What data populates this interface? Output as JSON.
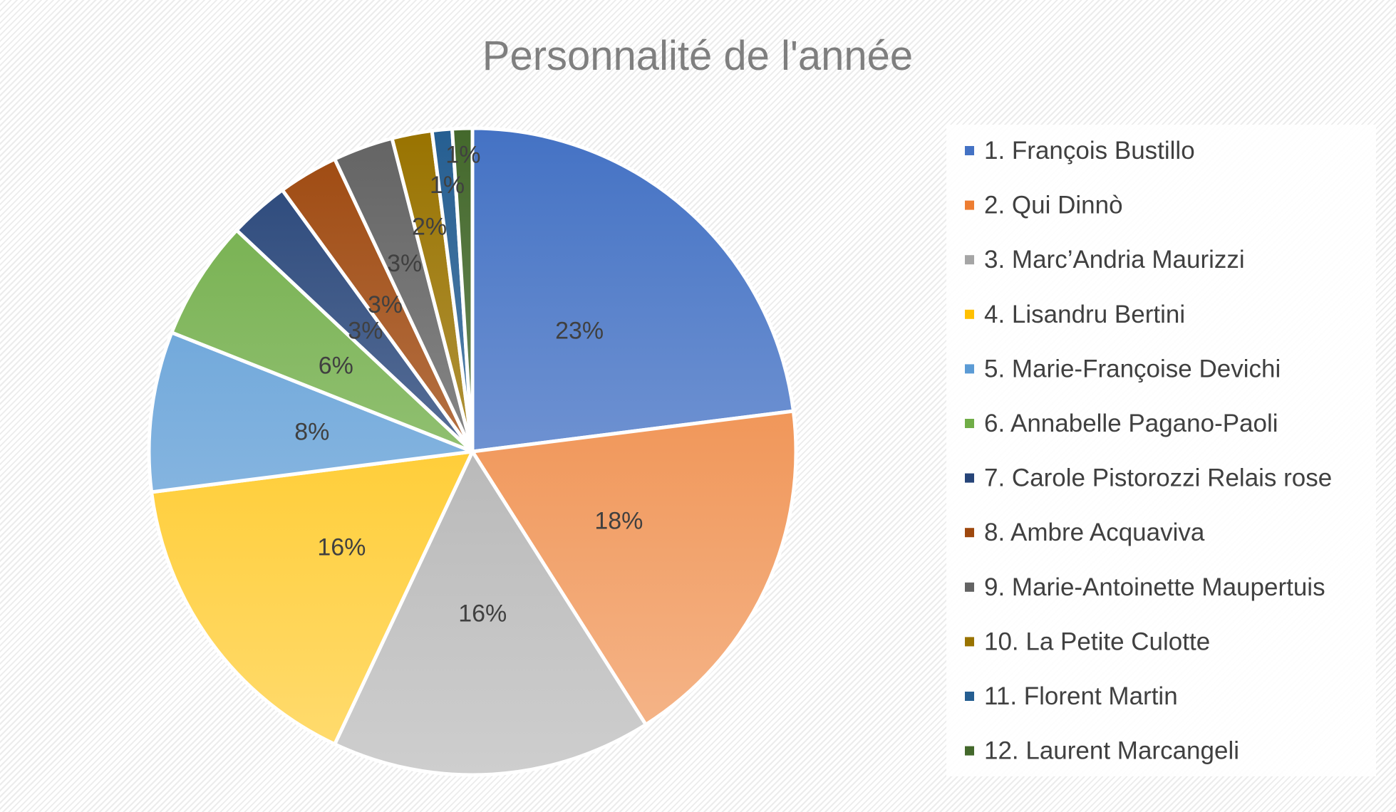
{
  "chart_data": {
    "type": "pie",
    "title": "Personnalité de l'année",
    "start_angle": "12 o'clock",
    "direction": "clockwise",
    "legend_position": "right",
    "categories": [
      "1. François Bustillo",
      "2. Qui Dinnò",
      "3. Marc’Andria Maurizzi",
      "4. Lisandru Bertini",
      "5. Marie-Françoise Devichi",
      "6. Annabelle Pagano-Paoli",
      "7. Carole Pistorozzi Relais rose",
      "8. Ambre Acquaviva",
      "9. Marie-Antoinette Maupertuis",
      "10. La Petite Culotte",
      "11. Florent Martin",
      "12. Laurent Marcangeli"
    ],
    "values": [
      23,
      18,
      16,
      16,
      8,
      6,
      3,
      3,
      3,
      2,
      1,
      1
    ],
    "data_labels": [
      "23%",
      "18%",
      "16%",
      "16%",
      "8%",
      "6%",
      "3%",
      "3%",
      "3%",
      "2%",
      "1%",
      "1%"
    ],
    "colors": [
      "#4472C4",
      "#ED7D31",
      "#A5A5A5",
      "#FFC000",
      "#5B9BD5",
      "#70AD47",
      "#264478",
      "#9E480E",
      "#636363",
      "#997300",
      "#255E91",
      "#43682B"
    ]
  }
}
